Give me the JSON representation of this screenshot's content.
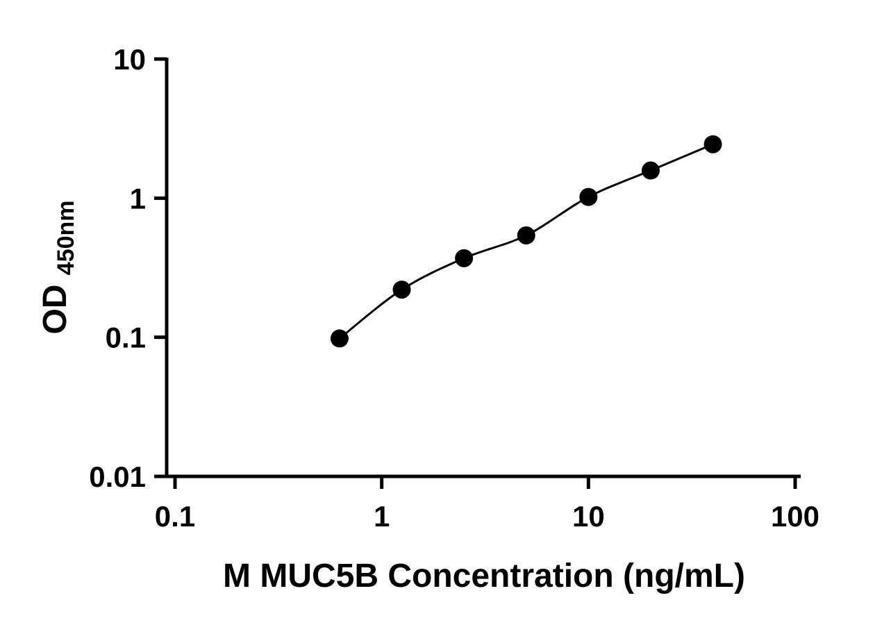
{
  "chart_data": {
    "type": "scatter",
    "title": "",
    "xlabel": "M MUC5B Concentration (ng/mL)",
    "ylabel": "OD",
    "ylabel_subscript": "450nm",
    "x_scale": "log",
    "y_scale": "log",
    "xlim": [
      0.1,
      100
    ],
    "ylim": [
      0.01,
      10
    ],
    "x_ticks": [
      0.1,
      1,
      10,
      100
    ],
    "x_tick_labels": [
      "0.1",
      "1",
      "10",
      "100"
    ],
    "y_ticks": [
      0.01,
      0.1,
      1,
      10
    ],
    "y_tick_labels": [
      "0.01",
      "0.1",
      "1",
      "10"
    ],
    "points": [
      {
        "x": 0.625,
        "y": 0.098
      },
      {
        "x": 1.25,
        "y": 0.22
      },
      {
        "x": 2.5,
        "y": 0.37
      },
      {
        "x": 5,
        "y": 0.54
      },
      {
        "x": 10,
        "y": 1.02
      },
      {
        "x": 20,
        "y": 1.58
      },
      {
        "x": 40,
        "y": 2.44
      }
    ],
    "has_fit_line": true,
    "legend": null,
    "grid": false,
    "marker_color": "#000000",
    "line_color": "#000000",
    "axis_color": "#000000",
    "background_color": "#ffffff"
  }
}
